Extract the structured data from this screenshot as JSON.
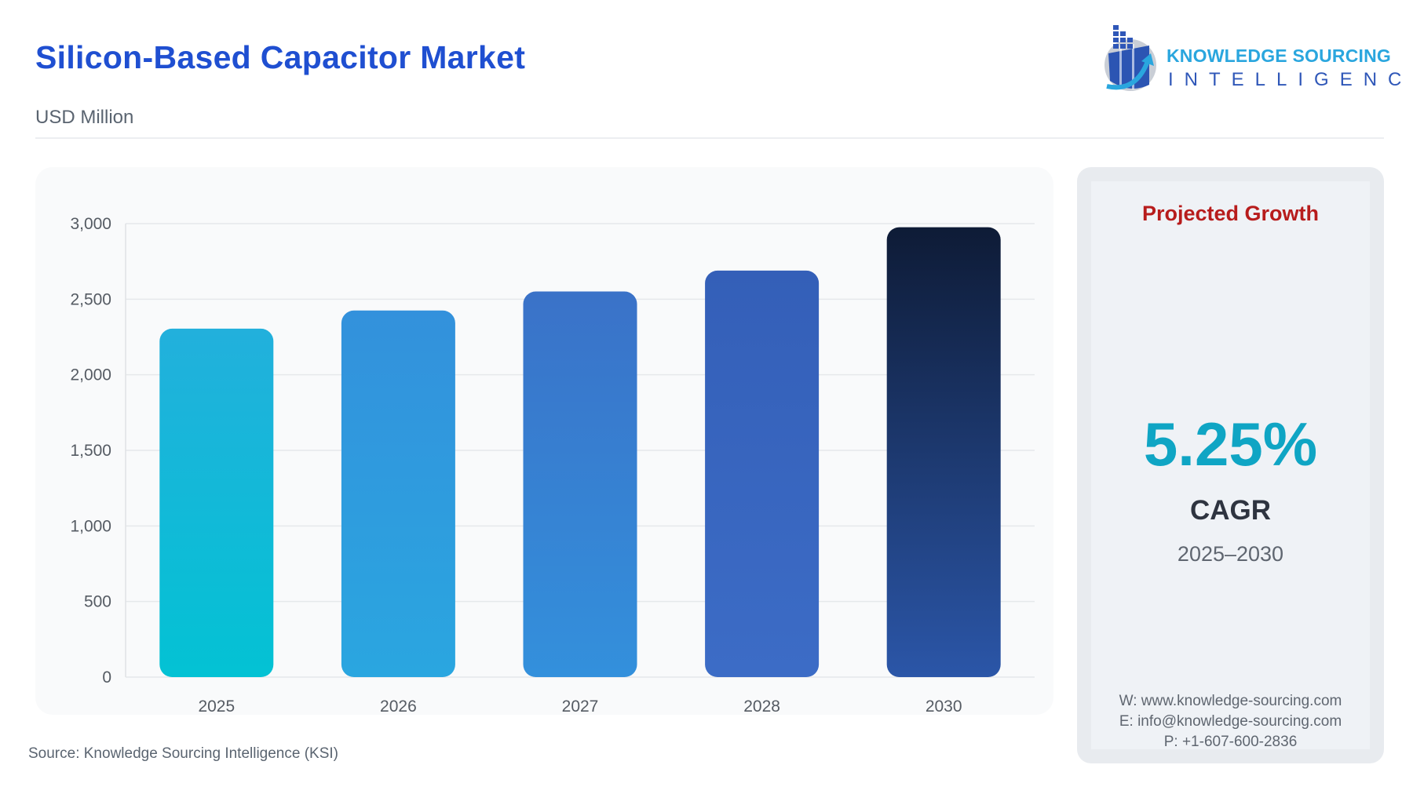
{
  "header": {
    "title": "Silicon-Based Capacitor Market",
    "subtitle": "USD Million"
  },
  "logo": {
    "line1": "KNOWLEDGE SOURCING",
    "line2": "INTELLIGENCE"
  },
  "source": "Source: Knowledge Sourcing Intelligence (KSI)",
  "side": {
    "title": "Projected Growth",
    "value": "5.25%",
    "label": "CAGR",
    "range": "2025–2030",
    "website": "W: www.knowledge-sourcing.com",
    "email": "E: info@knowledge-sourcing.com",
    "phone": "P: +1-607-600-2836"
  },
  "colors": {
    "title": "#1f4fd1",
    "projected": "#b71c1c",
    "cagr": "#0fa5c4"
  },
  "chart_data": {
    "type": "bar",
    "title": "",
    "xlabel": "",
    "ylabel": "",
    "categories": [
      "2025",
      "2026",
      "2027",
      "2028",
      "2030"
    ],
    "values": [
      2305,
      2425,
      2551,
      2689,
      2976
    ],
    "ylim": [
      0,
      3000
    ],
    "yticks": [
      0,
      500,
      1000,
      1500,
      2000,
      2500,
      3000
    ],
    "ytick_labels": [
      "0",
      "500",
      "1,000",
      "1,500",
      "2,000",
      "2,500",
      "3,000"
    ],
    "grid": true,
    "bar_colors": [
      [
        "#22b0dc",
        "#03c2d4"
      ],
      [
        "#3391dc",
        "#2aa6e0"
      ],
      [
        "#3a72c8",
        "#3390dc"
      ],
      [
        "#345fb8",
        "#3c6cc6"
      ],
      [
        "#0e1b36",
        "#2b56a8"
      ]
    ]
  }
}
